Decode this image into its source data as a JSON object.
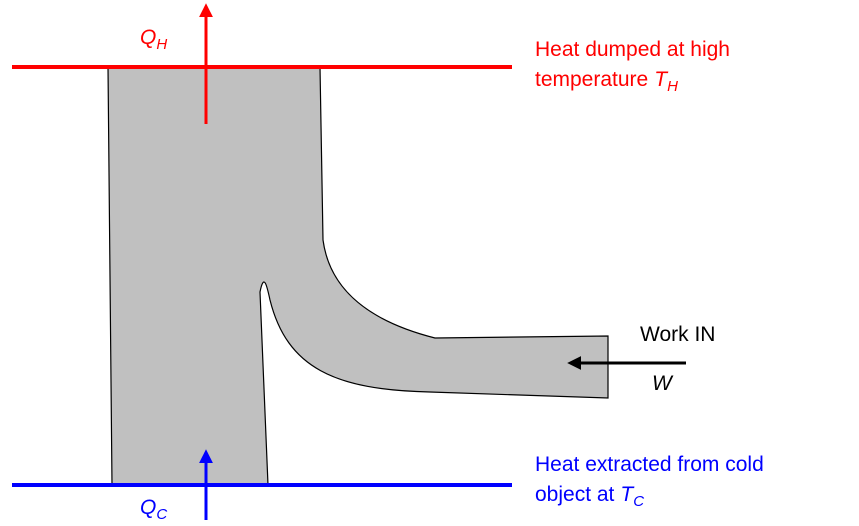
{
  "hot_heat": {
    "symbol": "Q",
    "subscript": "H"
  },
  "hot_reservoir": {
    "line1": "Heat dumped at high",
    "line2": "temperature",
    "symbol": "T",
    "subscript": "H"
  },
  "work": {
    "label": "Work IN",
    "symbol": "W"
  },
  "cold_reservoir": {
    "line1": "Heat extracted from cold",
    "line2": "object at",
    "symbol": "T",
    "subscript": "C"
  },
  "cold_heat": {
    "symbol": "Q",
    "subscript": "C"
  }
}
